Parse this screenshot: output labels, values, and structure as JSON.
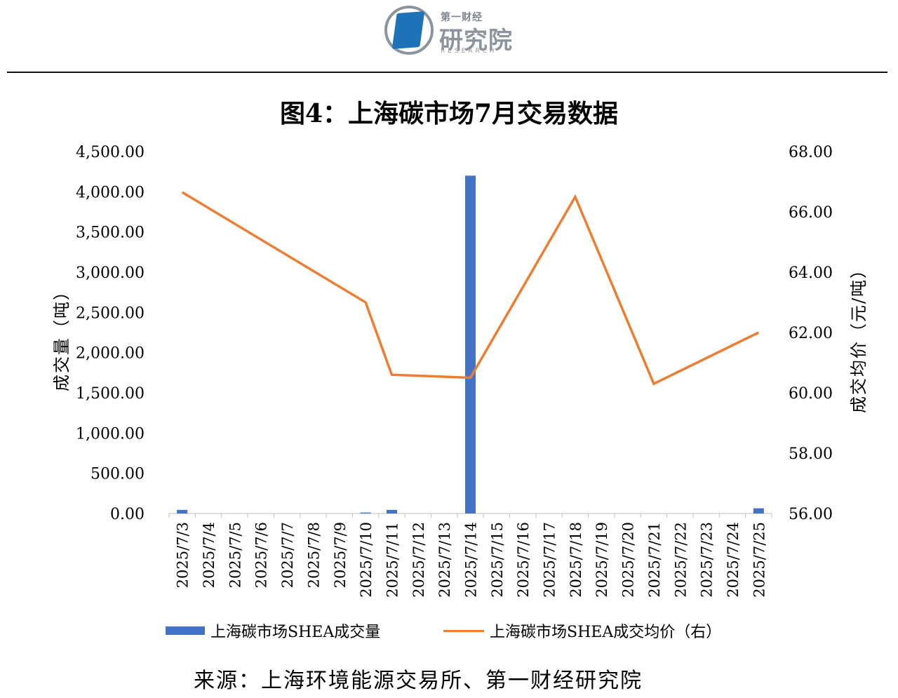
{
  "header": {
    "logo_top": "第一财经",
    "logo_main": "研究院",
    "logo_sub": "RESEARCH"
  },
  "colors": {
    "bar": "#4472c4",
    "line": "#ed7d31",
    "logo_blue": "#1e73b8",
    "logo_gray": "#8c959e"
  },
  "chart_data": {
    "type": "bar",
    "title": "图4：上海碳市场7月交易数据",
    "categories": [
      "2025/7/3",
      "2025/7/4",
      "2025/7/5",
      "2025/7/6",
      "2025/7/7",
      "2025/7/8",
      "2025/7/9",
      "2025/7/10",
      "2025/7/11",
      "2025/7/12",
      "2025/7/13",
      "2025/7/14",
      "2025/7/15",
      "2025/7/16",
      "2025/7/17",
      "2025/7/18",
      "2025/7/19",
      "2025/7/20",
      "2025/7/21",
      "2025/7/22",
      "2025/7/23",
      "2025/7/24",
      "2025/7/25"
    ],
    "ylabel_left": "成交量（吨）",
    "ylabel_right": "成交均价（元/吨）",
    "ylim_left": [
      0,
      4500
    ],
    "ylim_right": [
      56,
      68
    ],
    "yticks_left": [
      "0.00",
      "500.00",
      "1,000.00",
      "1,500.00",
      "2,000.00",
      "2,500.00",
      "3,000.00",
      "3,500.00",
      "4,000.00",
      "4,500.00"
    ],
    "yticks_right": [
      "56.00",
      "58.00",
      "60.00",
      "62.00",
      "64.00",
      "66.00",
      "68.00"
    ],
    "series": [
      {
        "name": "上海碳市场SHEA成交量",
        "type": "bar",
        "axis": "left",
        "values": [
          45,
          null,
          null,
          null,
          null,
          null,
          null,
          12,
          45,
          null,
          null,
          4200,
          null,
          null,
          null,
          null,
          null,
          null,
          null,
          null,
          null,
          null,
          65
        ]
      },
      {
        "name": "上海碳市场SHEA成交均价（右）",
        "type": "line",
        "axis": "right",
        "values": [
          66.65,
          null,
          null,
          null,
          null,
          null,
          null,
          63.0,
          60.6,
          null,
          null,
          60.5,
          null,
          null,
          null,
          66.5,
          null,
          null,
          60.3,
          null,
          null,
          null,
          62.0
        ]
      }
    ],
    "legend_position": "bottom",
    "grid": false
  },
  "footer": {
    "source": "来源：上海环境能源交易所、第一财经研究院"
  }
}
